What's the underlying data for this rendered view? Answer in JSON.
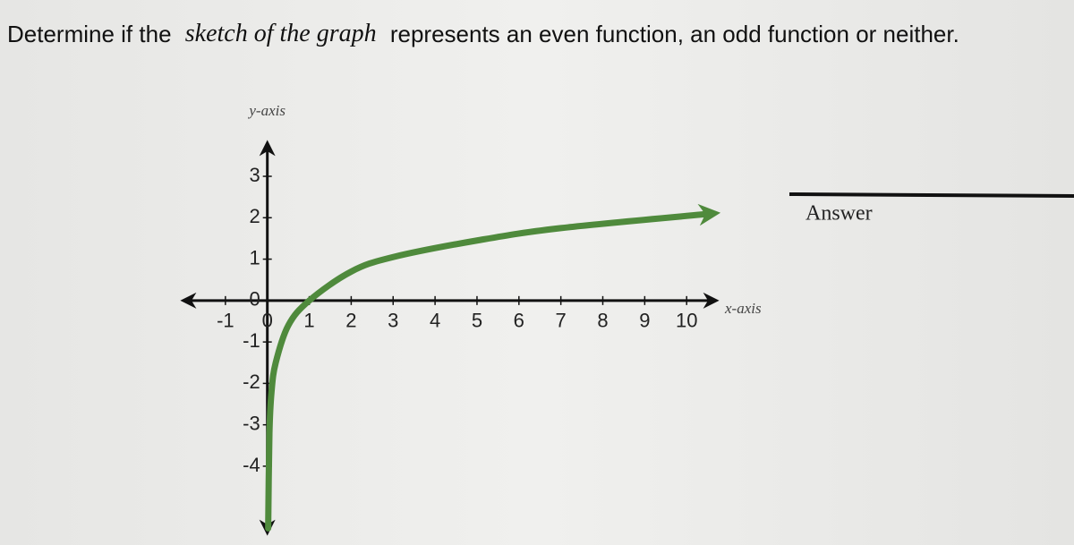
{
  "question": [
    "Determine if the",
    "sketch of the graph",
    "represents an even function, an odd function or neither."
  ],
  "answer_label": "Answer",
  "chart_data": {
    "type": "line",
    "x_label": "x-axis",
    "y_label": "y-axis",
    "x": [
      0.02,
      0.05,
      0.1,
      0.2,
      0.5,
      1,
      2,
      3,
      5,
      7,
      10.6
    ],
    "values": [
      -5.5,
      -3.2,
      -2.2,
      -1.5,
      -0.6,
      0,
      0.7,
      1.05,
      1.45,
      1.75,
      2.1
    ],
    "color": "#4f8a3c",
    "xlim": [
      -2,
      10.7
    ],
    "ylim": [
      -5.6,
      3.8
    ],
    "xticks": [
      -1,
      0,
      1,
      2,
      3,
      4,
      5,
      6,
      7,
      8,
      9,
      10
    ],
    "yticks": [
      -4,
      -3,
      -2,
      -1,
      0,
      1,
      2,
      3
    ]
  }
}
